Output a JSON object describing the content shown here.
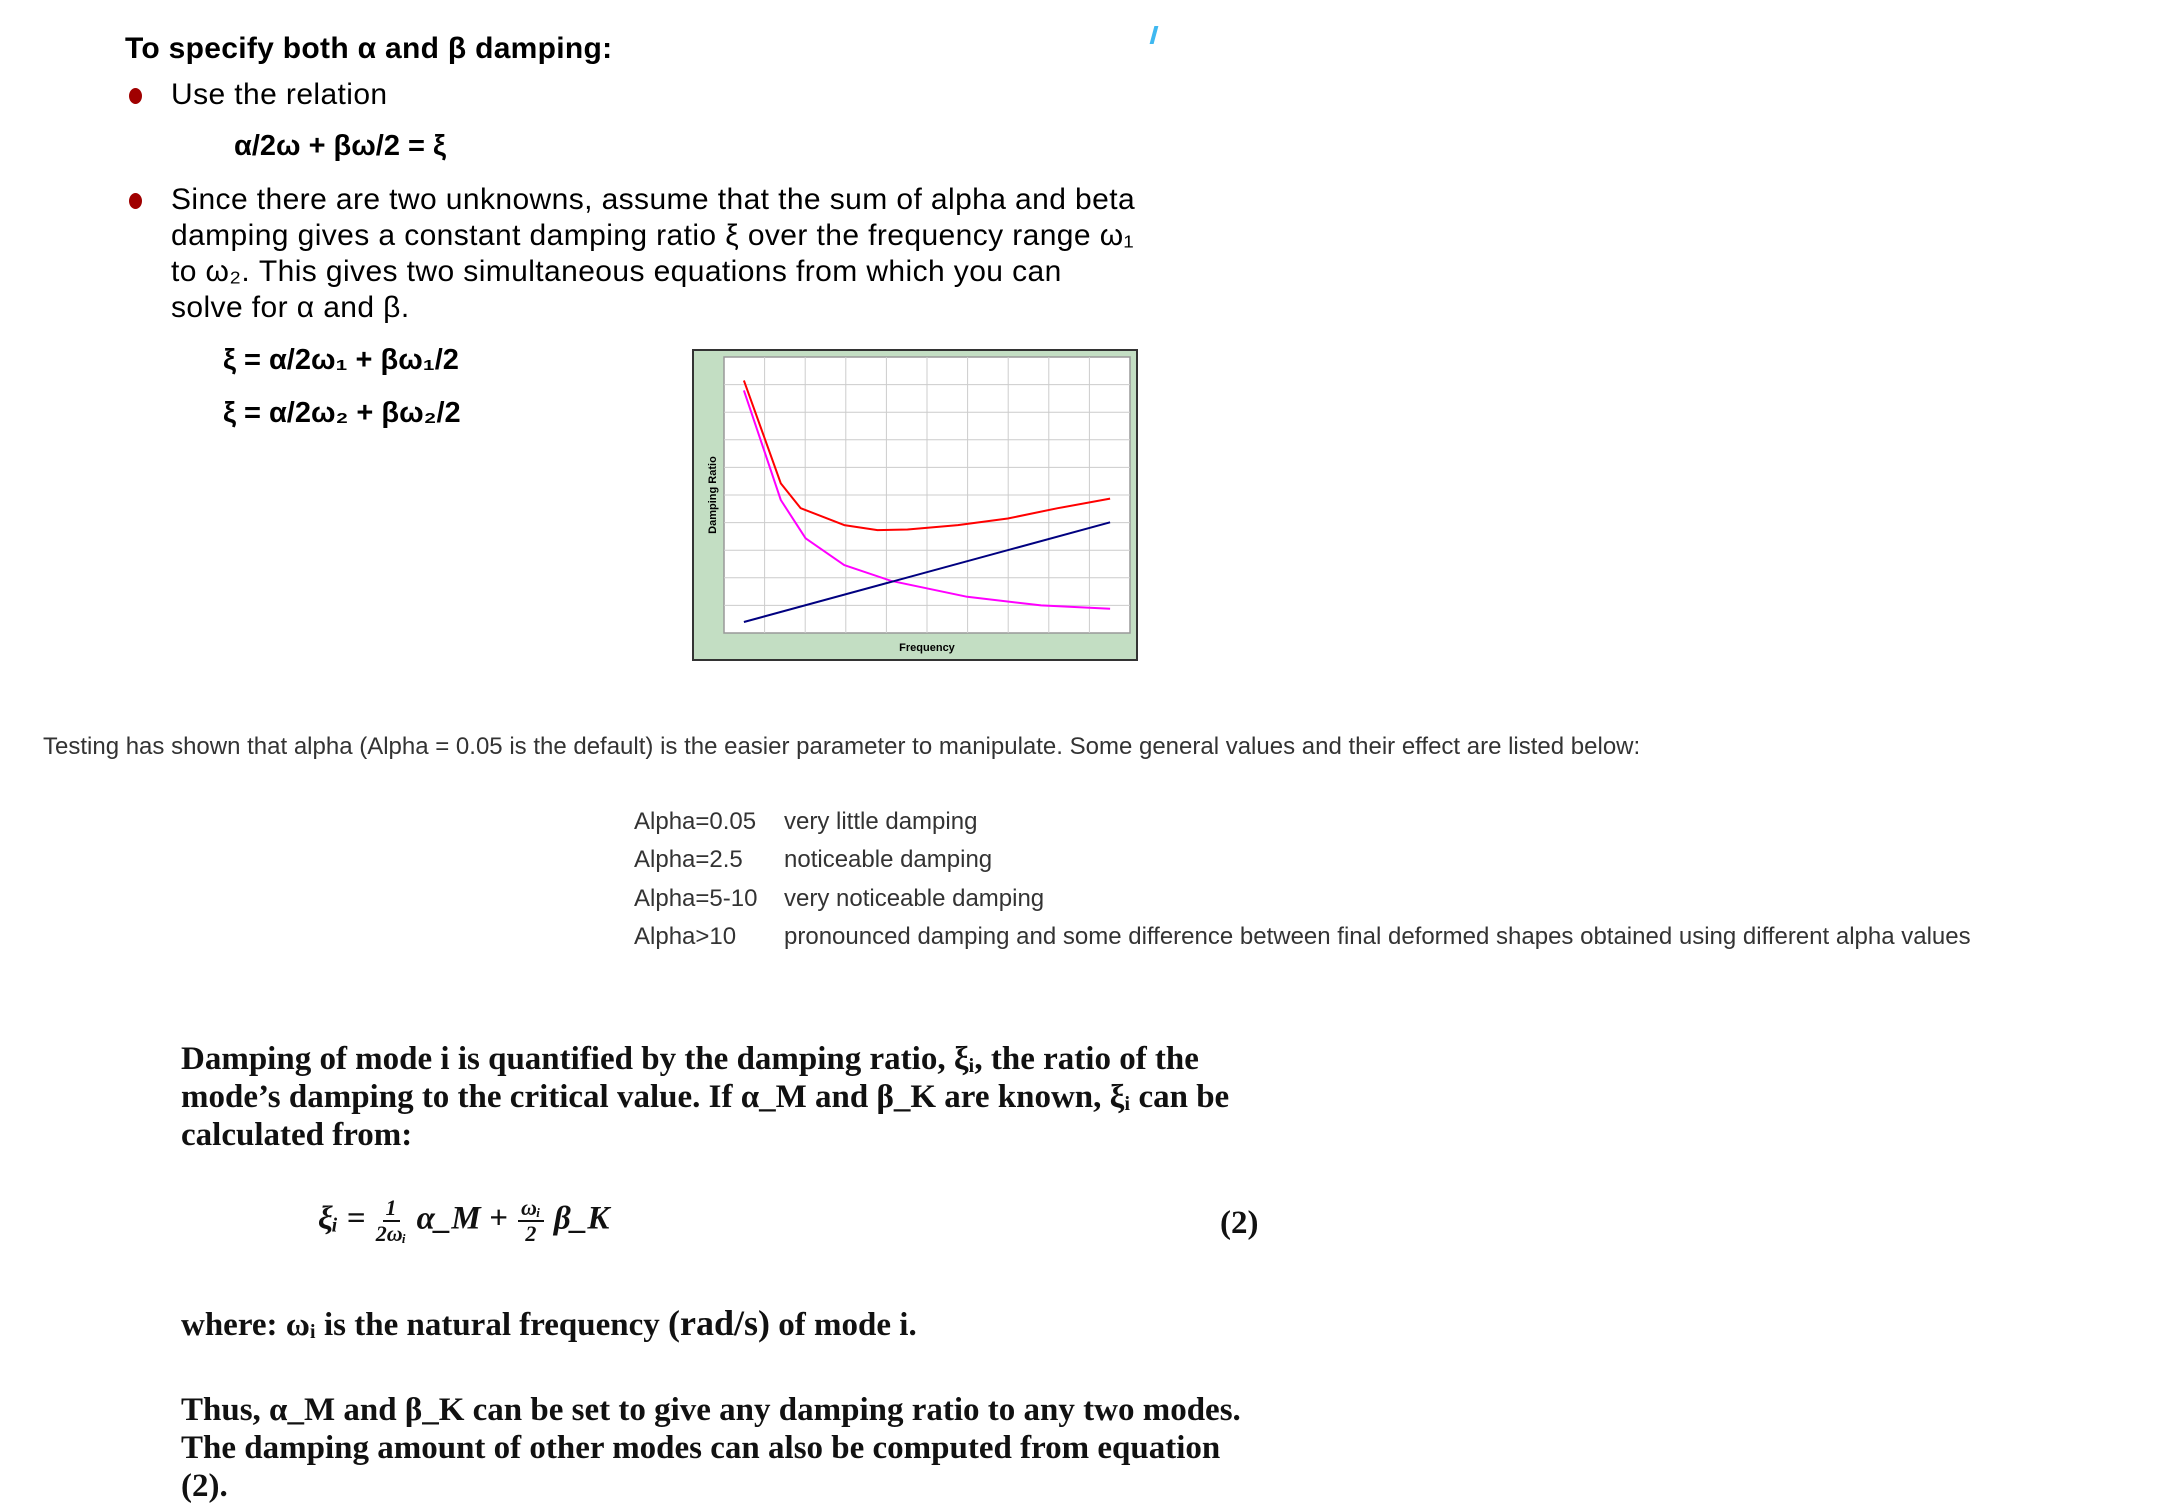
{
  "heading": "To specify both α and β damping:",
  "bullets": [
    {
      "text": "Use the relation"
    },
    {
      "lines": [
        "Since there are two unknowns, assume that the sum of alpha and beta",
        "damping gives a constant damping ratio ξ over the frequency range ω₁",
        "to ω₂.  This gives two simultaneous equations from which you can",
        "solve for α and β."
      ]
    }
  ],
  "relation": "α/2ω + βω/2 = ξ",
  "equations": [
    "ξ = α/2ω₁ + βω₁/2",
    "ξ = α/2ω₂ + βω₂/2"
  ],
  "chart_data": {
    "type": "line",
    "xlabel": "Frequency",
    "ylabel": "Damping Ratio",
    "grid": true,
    "xlim": [
      0,
      10
    ],
    "ylim": [
      0,
      10
    ],
    "background": "#c3dec3",
    "series": [
      {
        "color": "#ff0000",
        "x": [
          0.49,
          1.4,
          1.89,
          2.96,
          3.78,
          4.52,
          5.76,
          6.99,
          8.22,
          9.51
        ],
        "y": [
          9.15,
          5.42,
          4.52,
          3.91,
          3.73,
          3.75,
          3.91,
          4.15,
          4.52,
          4.87
        ]
      },
      {
        "color": "#ff00ff",
        "x": [
          0.49,
          1.4,
          2.01,
          2.96,
          4.11,
          5.99,
          7.81,
          9.51
        ],
        "y": [
          8.79,
          4.82,
          3.43,
          2.46,
          1.89,
          1.31,
          1.0,
          0.88
        ]
      },
      {
        "color": "#000080",
        "x": [
          0.49,
          9.51
        ],
        "y": [
          0.4,
          4.01
        ]
      }
    ]
  },
  "testing_text": "Testing has shown that alpha (Alpha = 0.05 is the default) is the easier parameter to manipulate. Some general values and their effect are listed below:",
  "alpha_values": [
    {
      "key": "Alpha=0.05",
      "effect": "very little damping"
    },
    {
      "key": "Alpha=2.5",
      "effect": "noticeable damping"
    },
    {
      "key": "Alpha=5-10",
      "effect": "very noticeable damping"
    },
    {
      "key": "Alpha>10",
      "effect": "pronounced damping and some difference between final deformed shapes obtained using different alpha values"
    }
  ],
  "paper": {
    "p1_lines": [
      "Damping of mode i is quantified by the damping ratio, ξᵢ, the ratio of the",
      "mode’s damping to the critical value. If α_M and β_K are known, ξᵢ can be",
      "calculated from:"
    ],
    "formula_lhs": "ξᵢ =",
    "frac1_num": "1",
    "frac1_den": "2ωᵢ",
    "term1": "α_M +",
    "frac2_num": "ωᵢ",
    "frac2_den": "2",
    "term2": "β_K",
    "eq_number": "(2)",
    "where_prefix": "where:  ωᵢ is the natural frequency",
    "units": "(rad/s)",
    "where_suffix": "of mode i.",
    "p2_lines": [
      "Thus, α_M and β_K can be set to give any damping ratio to any two modes.",
      "The damping amount of other modes can also be computed from equation",
      "(2)."
    ]
  },
  "colors": {
    "bullet": "#a00000",
    "body_gray": "#333333"
  }
}
